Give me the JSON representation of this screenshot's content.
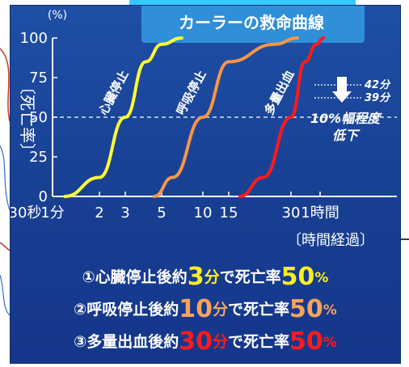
{
  "chart_data": {
    "type": "line",
    "title": "カーラーの救命曲線",
    "y_unit": "(%)",
    "ylabel": "〔死亡率〕",
    "xlabel": "〔時間経過〕",
    "ylim": [
      0,
      100
    ],
    "y_ticks": [
      "0",
      "25",
      "50",
      "75",
      "100"
    ],
    "x_ticks": [
      "30秒",
      "1分",
      "2",
      "3",
      "5",
      "10",
      "15",
      "30",
      "1時間"
    ],
    "series": [
      {
        "name": "心臓停止",
        "color": "#ffff33",
        "x_min": [
          1.2,
          2.0,
          3.0,
          4.0,
          5.0,
          7.0
        ],
        "y": [
          0,
          12,
          50,
          85,
          96,
          100
        ]
      },
      {
        "name": "呼吸停止",
        "color": "#f79646",
        "x_min": [
          4.5,
          6.0,
          10.0,
          15.0,
          25.0,
          35.0
        ],
        "y": [
          0,
          12,
          50,
          85,
          96,
          100
        ]
      },
      {
        "name": "多量出血",
        "color": "#ff1a1a",
        "x_min": [
          17.0,
          22.0,
          30.0,
          42.0,
          55.0,
          65.0
        ],
        "y": [
          0,
          12,
          50,
          85,
          96,
          100
        ]
      }
    ],
    "annotations": {
      "marker_top": "42分",
      "marker_bottom": "39分",
      "note_line1": "10%幅程度",
      "note_line2": "低下"
    }
  },
  "summary": [
    {
      "prefix": "①心臓停止後約",
      "num": "3",
      "unit": "分",
      "mid": "で死亡率",
      "pct_num": "50",
      "pct": "%",
      "num_color": "#fcee21",
      "pct_color": "#fcee21"
    },
    {
      "prefix": "②呼吸停止後約",
      "num": "10",
      "unit": "分",
      "mid": "で死亡率",
      "pct_num": "50",
      "pct": "%",
      "num_color": "#f7a35c",
      "pct_color": "#f7a35c"
    },
    {
      "prefix": "③多量出血後約",
      "num": "30",
      "unit": "分",
      "mid": "で死亡率",
      "pct_num": "50",
      "pct": "%",
      "num_color": "#ff1a1a",
      "pct_color": "#ff1a1a"
    }
  ],
  "colors": {
    "panel": "#1b479c",
    "title_bar": "#2f8fd8",
    "title_text": "#ffffff",
    "axis": "#ffffff",
    "grid_50": "#ffffff"
  }
}
